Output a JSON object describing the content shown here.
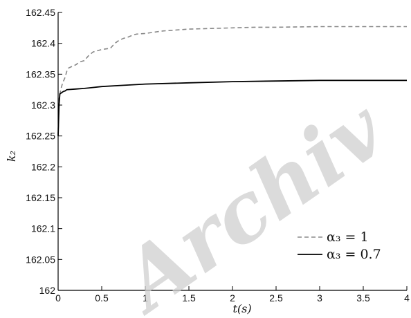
{
  "chart_data": {
    "type": "line",
    "title": "",
    "xlabel": "t(s)",
    "ylabel": "k₂",
    "xlim": [
      0,
      4
    ],
    "ylim": [
      162,
      162.45
    ],
    "x_ticks": [
      0,
      0.5,
      1,
      1.5,
      2,
      2.5,
      3,
      3.5,
      4
    ],
    "x_tick_labels": [
      "0",
      "0.5",
      "1",
      "1.5",
      "2",
      "2.5",
      "3",
      "3.5",
      "4"
    ],
    "y_ticks": [
      162,
      162.05,
      162.1,
      162.15,
      162.2,
      162.25,
      162.3,
      162.35,
      162.4,
      162.45
    ],
    "y_tick_labels": [
      "162",
      "162.05",
      "162.1",
      "162.15",
      "162.2",
      "162.25",
      "162.3",
      "162.35",
      "162.4",
      "162.45"
    ],
    "grid": false,
    "legend_position": "bottom-right",
    "series": [
      {
        "name": "α₃ = 1",
        "style": "dashed",
        "color": "#888888",
        "x": [
          0,
          0.01,
          0.03,
          0.05,
          0.08,
          0.1,
          0.12,
          0.15,
          0.2,
          0.25,
          0.3,
          0.35,
          0.4,
          0.45,
          0.5,
          0.55,
          0.6,
          0.65,
          0.7,
          0.75,
          0.8,
          0.85,
          0.9,
          1.0,
          1.1,
          1.2,
          1.3,
          1.4,
          1.5,
          1.75,
          2.0,
          2.25,
          2.5,
          3.0,
          3.5,
          4.0
        ],
        "y": [
          162.25,
          162.31,
          162.325,
          162.335,
          162.345,
          162.355,
          162.36,
          162.362,
          162.365,
          162.37,
          162.372,
          162.38,
          162.386,
          162.388,
          162.39,
          162.391,
          162.392,
          162.4,
          162.405,
          162.408,
          162.41,
          162.413,
          162.415,
          162.416,
          162.418,
          162.42,
          162.421,
          162.422,
          162.423,
          162.424,
          162.425,
          162.426,
          162.426,
          162.427,
          162.427,
          162.427
        ]
      },
      {
        "name": "α₃ = 0.7",
        "style": "solid",
        "color": "#000000",
        "x": [
          0,
          0.01,
          0.02,
          0.04,
          0.06,
          0.08,
          0.1,
          0.2,
          0.3,
          0.5,
          0.75,
          1.0,
          1.5,
          2.0,
          2.5,
          3.0,
          3.5,
          4.0
        ],
        "y": [
          162.25,
          162.3,
          162.318,
          162.32,
          162.322,
          162.323,
          162.325,
          162.326,
          162.327,
          162.33,
          162.332,
          162.334,
          162.336,
          162.338,
          162.339,
          162.34,
          162.34,
          162.34
        ]
      }
    ]
  },
  "watermark": "Archiv"
}
